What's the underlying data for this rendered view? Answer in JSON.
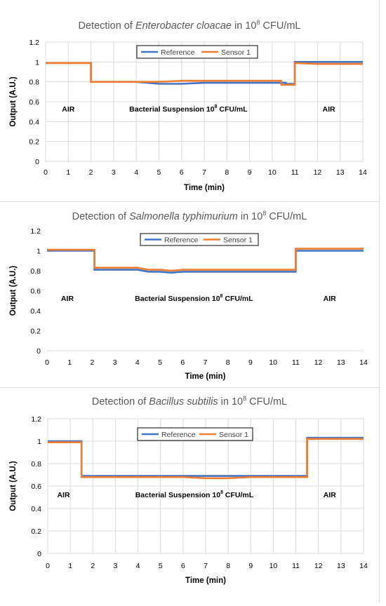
{
  "chart_data": [
    {
      "type": "line",
      "title": "Detection of",
      "title_italic": "Enterobacter cloacae",
      "title_suffix": " in 10",
      "title_sup": "8",
      "title_end": " CFU/mL",
      "xlabel": "Time (min)",
      "ylabel": "Output (A.U.)",
      "xlim": [
        0,
        14
      ],
      "ylim": [
        0,
        1.2
      ],
      "xticks": [
        "0",
        "1",
        "2",
        "3",
        "4",
        "5",
        "6",
        "7",
        "8",
        "9",
        "10",
        "11",
        "12",
        "13",
        "14"
      ],
      "yticks": [
        "0",
        "0.2",
        "0.4",
        "0.6",
        "0.8",
        "1",
        "1.2"
      ],
      "grid": true,
      "legend_position": "top-center",
      "annotations": [
        {
          "text": "AIR",
          "x": 1,
          "y": 0.5
        },
        {
          "text": "Bacterial Suspension 10",
          "sup": "8",
          "text_end": " CFU/mL",
          "x": 6.3,
          "y": 0.5
        },
        {
          "text": "AIR",
          "x": 12.5,
          "y": 0.5
        }
      ],
      "series": [
        {
          "name": "Reference",
          "color": "#4472C4",
          "x": [
            0,
            2,
            2,
            3,
            4,
            5,
            6,
            7,
            8,
            9,
            10,
            10.6,
            10.6,
            11,
            11,
            12,
            13,
            14
          ],
          "y": [
            0.99,
            0.99,
            0.8,
            0.8,
            0.8,
            0.78,
            0.78,
            0.79,
            0.79,
            0.79,
            0.79,
            0.79,
            0.78,
            0.78,
            1.0,
            1.0,
            1.0,
            1.0
          ]
        },
        {
          "name": "Sensor 1",
          "color": "#ED7D31",
          "x": [
            0,
            2,
            2,
            3,
            4,
            5,
            6,
            7,
            8,
            9,
            10,
            10.4,
            10.4,
            11,
            11,
            12,
            13,
            14
          ],
          "y": [
            0.99,
            0.99,
            0.8,
            0.8,
            0.8,
            0.8,
            0.81,
            0.81,
            0.81,
            0.81,
            0.81,
            0.81,
            0.77,
            0.77,
            0.99,
            0.98,
            0.98,
            0.98
          ]
        }
      ]
    },
    {
      "type": "line",
      "title": "Detection of",
      "title_italic": "Salmonella typhimurium",
      "title_suffix": " in 10",
      "title_sup": "8",
      "title_end": " CFU/mL",
      "xlabel": "Time (min)",
      "ylabel": "Output (A.U.)",
      "xlim": [
        0,
        14
      ],
      "ylim": [
        0,
        1.2
      ],
      "xticks": [
        "0",
        "1",
        "2",
        "3",
        "4",
        "5",
        "6",
        "7",
        "8",
        "9",
        "10",
        "11",
        "12",
        "13",
        "14"
      ],
      "yticks": [
        "0",
        "0.2",
        "0.4",
        "0.6",
        "0.8",
        "1",
        "1.2"
      ],
      "grid": false,
      "legend_position": "top-center",
      "annotations": [
        {
          "text": "AIR",
          "x": 0.9,
          "y": 0.5
        },
        {
          "text": "Bacterial Suspension 10",
          "sup": "8",
          "text_end": " CFU/mL",
          "x": 6.5,
          "y": 0.5
        },
        {
          "text": "AIR",
          "x": 12.5,
          "y": 0.5
        }
      ],
      "series": [
        {
          "name": "Reference",
          "color": "#4472C4",
          "x": [
            0,
            2.1,
            2.1,
            3,
            4,
            4.5,
            5,
            5.5,
            6,
            7,
            8,
            9,
            10,
            11,
            11,
            12,
            13,
            14
          ],
          "y": [
            1.0,
            1.0,
            0.81,
            0.81,
            0.81,
            0.79,
            0.79,
            0.78,
            0.79,
            0.79,
            0.79,
            0.79,
            0.79,
            0.79,
            1.0,
            1.0,
            1.0,
            1.0
          ]
        },
        {
          "name": "Sensor 1",
          "color": "#ED7D31",
          "x": [
            0,
            2.1,
            2.1,
            3,
            4,
            4.5,
            5,
            5.5,
            6,
            7,
            8,
            9,
            10,
            11,
            11,
            12,
            13,
            14
          ],
          "y": [
            1.01,
            1.01,
            0.83,
            0.83,
            0.83,
            0.81,
            0.81,
            0.8,
            0.81,
            0.81,
            0.81,
            0.81,
            0.81,
            0.81,
            1.02,
            1.02,
            1.02,
            1.02
          ]
        }
      ]
    },
    {
      "type": "line",
      "title": "Detection of",
      "title_italic": "Bacillus subtilis",
      "title_suffix": " in 10",
      "title_sup": "8",
      "title_end": " CFU/mL",
      "xlabel": "Time (min)",
      "ylabel": "Output (A.U.)",
      "xlim": [
        0,
        14
      ],
      "ylim": [
        0,
        1.2
      ],
      "xticks": [
        "0",
        "1",
        "2",
        "3",
        "4",
        "5",
        "6",
        "7",
        "8",
        "9",
        "10",
        "11",
        "12",
        "13",
        "14"
      ],
      "yticks": [
        "0",
        "0.2",
        "0.4",
        "0.6",
        "0.8",
        "1",
        "1.2"
      ],
      "grid": true,
      "legend_position": "top-right",
      "annotations": [
        {
          "text": "AIR",
          "x": 0.7,
          "y": 0.5
        },
        {
          "text": "Bacterial Suspension 10",
          "sup": "8",
          "text_end": " CFU/mL",
          "x": 6.5,
          "y": 0.5
        },
        {
          "text": "AIR",
          "x": 12.5,
          "y": 0.5
        }
      ],
      "series": [
        {
          "name": "Reference",
          "color": "#4472C4",
          "x": [
            0,
            1.5,
            1.5,
            3,
            4,
            5,
            6,
            7,
            8,
            9,
            10,
            11.5,
            11.5,
            12,
            13,
            14
          ],
          "y": [
            1.0,
            1.0,
            0.69,
            0.69,
            0.69,
            0.69,
            0.69,
            0.69,
            0.69,
            0.69,
            0.69,
            0.69,
            1.03,
            1.03,
            1.03,
            1.03
          ]
        },
        {
          "name": "Sensor 1",
          "color": "#ED7D31",
          "x": [
            0,
            1.5,
            1.5,
            3,
            4,
            5,
            6,
            7,
            8,
            9,
            10,
            11.5,
            11.5,
            12,
            13,
            14
          ],
          "y": [
            0.99,
            0.99,
            0.68,
            0.68,
            0.68,
            0.68,
            0.68,
            0.67,
            0.67,
            0.68,
            0.68,
            0.68,
            1.02,
            1.02,
            1.02,
            1.02
          ]
        }
      ]
    }
  ]
}
